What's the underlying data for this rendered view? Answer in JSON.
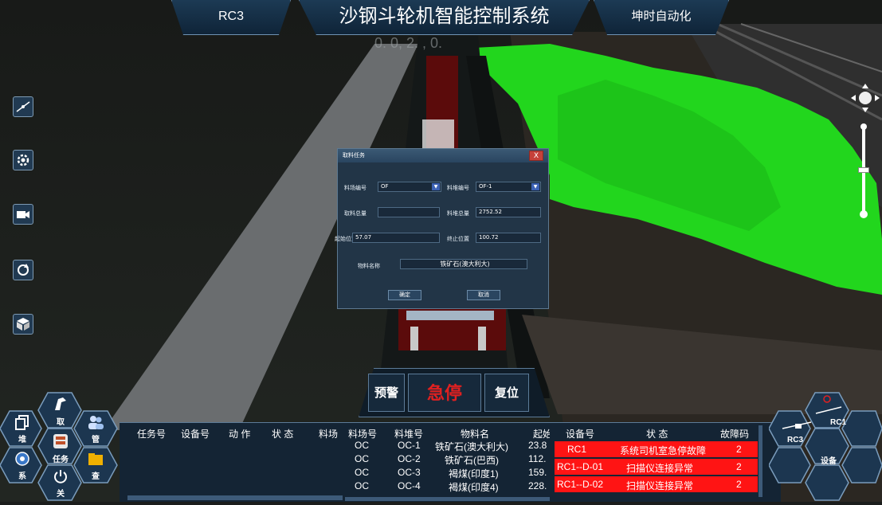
{
  "header": {
    "left_tab": "RC3",
    "title": "沙钢斗轮机智能控制系统",
    "right_tab": "坤时自动化"
  },
  "scene_overlay_text": "0. 0,  2.  , 0.",
  "left_toolbar": {
    "items": [
      {
        "icon": "measure-line-icon"
      },
      {
        "icon": "settings-gear-icon"
      },
      {
        "icon": "camera-icon"
      },
      {
        "icon": "refresh-icon"
      },
      {
        "icon": "cube-icon"
      }
    ]
  },
  "dialog": {
    "title": "取料任务",
    "close": "X",
    "yard_label": "料场编号",
    "yard_value": "OF",
    "pile_label": "料堆编号",
    "pile_value": "OF-1",
    "total_label": "取料总量",
    "total_value": "",
    "pile_total_label": "料堆总量",
    "pile_total_value": "2752.52",
    "start_label": "起始位置",
    "start_value": "57.07",
    "end_label": "终止位置",
    "end_value": "100.72",
    "material_label": "物料名称",
    "material_value": "铁矿石(澳大利大)",
    "ok": "确定",
    "cancel": "取消"
  },
  "controls": {
    "warning": "预警",
    "estop": "急停",
    "reset": "复位"
  },
  "nav_hex": {
    "take": "取",
    "stack": "堆",
    "manage": "管",
    "task": "任务",
    "system": "系",
    "check": "查",
    "close": "关"
  },
  "task_table": {
    "headers": [
      "任务号",
      "设备号",
      "动 作",
      "状 态",
      "料场"
    ]
  },
  "pile_table": {
    "headers": [
      "料场号",
      "料堆号",
      "物料名",
      "起始"
    ],
    "rows": [
      [
        "OC",
        "OC-1",
        "铁矿石(澳大利大)",
        "23.8"
      ],
      [
        "OC",
        "OC-2",
        "铁矿石(巴西)",
        "112."
      ],
      [
        "OC",
        "OC-3",
        "褐煤(印度1)",
        "159."
      ],
      [
        "OC",
        "OC-4",
        "褐煤(印度4)",
        "228."
      ]
    ]
  },
  "fault_table": {
    "headers": [
      "设备号",
      "状 态",
      "故障码"
    ],
    "rows": [
      [
        "RC1",
        "系统司机室急停故障",
        "2"
      ],
      [
        "RC1--D-01",
        "扫描仪连接异常",
        "2"
      ],
      [
        "RC1--D-02",
        "扫描仪连接异常",
        "2"
      ]
    ]
  },
  "device_hex": {
    "rc1": "RC1",
    "rc3": "RC3",
    "device": "设备"
  },
  "colors": {
    "fault_red": "#ff1414",
    "estop_red": "#e02020",
    "stockpile_green": "#22d61d",
    "panel_blue": "#16293b"
  }
}
